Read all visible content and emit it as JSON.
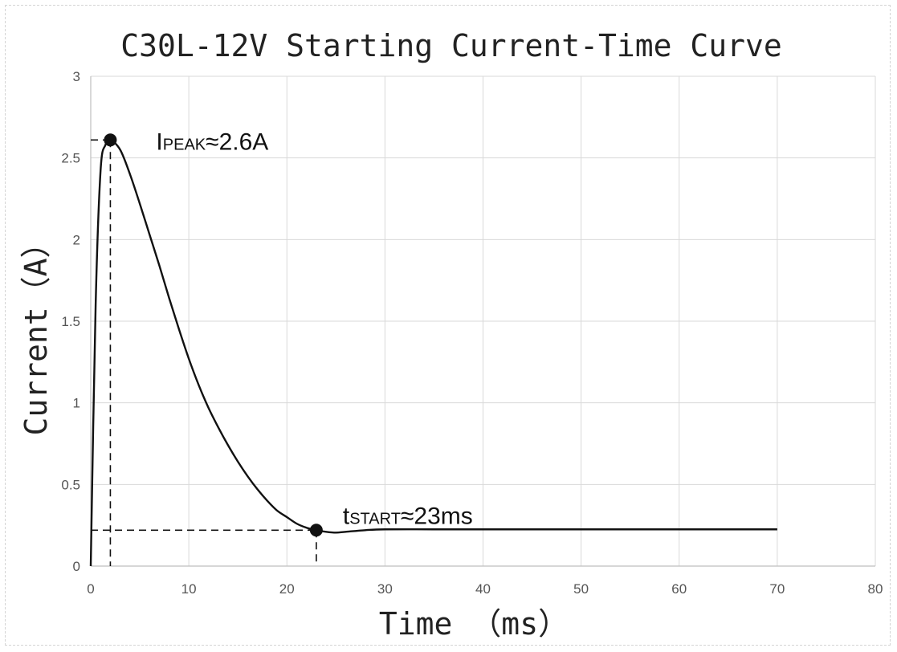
{
  "chart_data": {
    "type": "line",
    "title": "C30L-12V Starting Current-Time Curve",
    "xlabel": "Time （ms）",
    "ylabel": "Current（A）",
    "xlim": [
      0,
      80
    ],
    "ylim": [
      0,
      3
    ],
    "xticks": [
      "0",
      "10",
      "20",
      "30",
      "40",
      "50",
      "60",
      "70",
      "80"
    ],
    "yticks": [
      "0",
      "0.5",
      "1",
      "1.5",
      "2",
      "2.5",
      "3"
    ],
    "grid": true,
    "series": [
      {
        "x": [
          0,
          0.5,
          1,
          1.5,
          2,
          3,
          4,
          5,
          6,
          7,
          8,
          9,
          10,
          11,
          12,
          13,
          14,
          15,
          16,
          17,
          18,
          19,
          20,
          21,
          22,
          23,
          24,
          25,
          26,
          28,
          30,
          35,
          40,
          50,
          60,
          70
        ],
        "y": [
          0,
          1.6,
          2.42,
          2.58,
          2.61,
          2.55,
          2.4,
          2.22,
          2.03,
          1.84,
          1.64,
          1.45,
          1.27,
          1.11,
          0.97,
          0.85,
          0.74,
          0.64,
          0.55,
          0.47,
          0.4,
          0.34,
          0.3,
          0.26,
          0.235,
          0.22,
          0.21,
          0.205,
          0.21,
          0.22,
          0.225,
          0.225,
          0.225,
          0.225,
          0.225,
          0.225
        ]
      }
    ],
    "annotations": [
      {
        "x": 2,
        "y": 2.61,
        "main": "I",
        "sub": "PEAK",
        "rest": "≈2.6A"
      },
      {
        "x": 23,
        "y": 0.22,
        "main": "t",
        "sub": "START",
        "rest": "≈23ms"
      }
    ]
  }
}
